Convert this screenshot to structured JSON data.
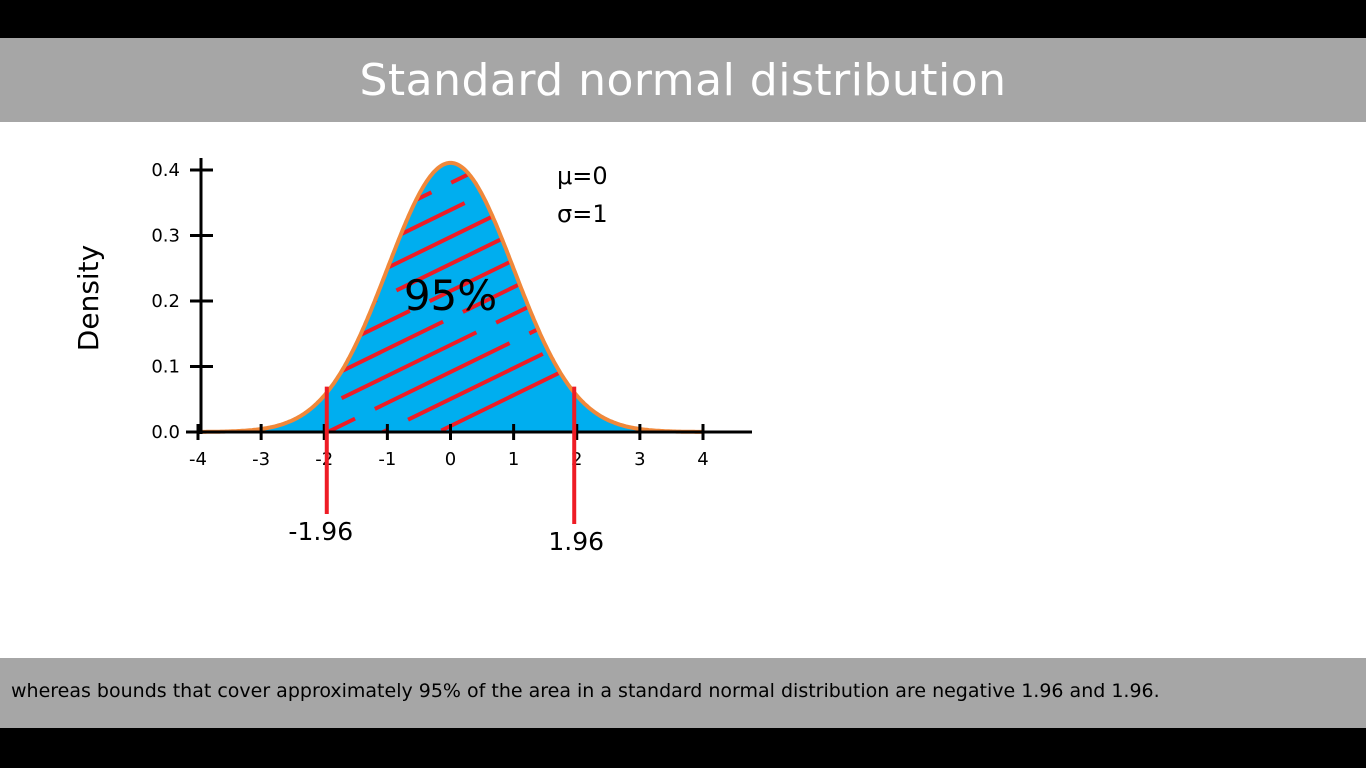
{
  "slide": {
    "title": "Standard normal distribution",
    "caption": "whereas bounds that cover approximately 95% of the area in a standard normal distribution are negative 1.96 and 1.96."
  },
  "chart_data": {
    "type": "area",
    "title": "",
    "xlabel": "",
    "ylabel": "Density",
    "xlim": [
      -4,
      4
    ],
    "ylim": [
      0,
      0.4
    ],
    "x_ticks": [
      "-4",
      "-3",
      "-2",
      "-1",
      "0",
      "1",
      "2",
      "3",
      "4"
    ],
    "y_ticks": [
      "0.0",
      "0.1",
      "0.2",
      "0.3",
      "0.4"
    ],
    "grid": false,
    "series": [
      {
        "distribution": "normal",
        "mean": 0,
        "sd": 1
      }
    ],
    "shaded_region": {
      "from": -1.96,
      "to": 1.96,
      "label": "95%",
      "hatch_color": "#ee1c25"
    },
    "markers": [
      {
        "x": -1.96,
        "label": "-1.96"
      },
      {
        "x": 1.96,
        "label": "1.96"
      }
    ],
    "params": [
      "μ=0",
      "σ=1"
    ],
    "colors": {
      "fill": "#00aeef",
      "curve": "#f0883a",
      "marker": "#ee1c25",
      "axis": "#000000"
    }
  }
}
